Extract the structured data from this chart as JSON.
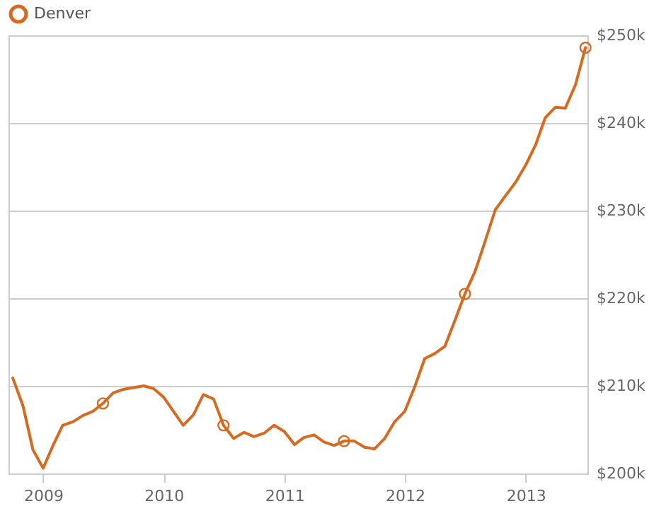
{
  "chart_data": {
    "type": "line",
    "x": [
      "2008-10",
      "2008-11",
      "2008-12",
      "2009-01",
      "2009-02",
      "2009-03",
      "2009-04",
      "2009-05",
      "2009-06",
      "2009-07",
      "2009-08",
      "2009-09",
      "2009-10",
      "2009-11",
      "2009-12",
      "2010-01",
      "2010-02",
      "2010-03",
      "2010-04",
      "2010-05",
      "2010-06",
      "2010-07",
      "2010-08",
      "2010-09",
      "2010-10",
      "2010-11",
      "2010-12",
      "2011-01",
      "2011-02",
      "2011-03",
      "2011-04",
      "2011-05",
      "2011-06",
      "2011-07",
      "2011-08",
      "2011-09",
      "2011-10",
      "2011-11",
      "2011-12",
      "2012-01",
      "2012-02",
      "2012-03",
      "2012-04",
      "2012-05",
      "2012-06",
      "2012-07",
      "2012-08",
      "2012-09",
      "2012-10",
      "2012-11",
      "2012-12",
      "2013-01",
      "2013-02",
      "2013-03",
      "2013-04",
      "2013-05",
      "2013-06",
      "2013-07"
    ],
    "series": [
      {
        "name": "Denver",
        "color": "#d9691f",
        "marker": "none",
        "values": [
          210900,
          207700,
          202700,
          200600,
          203300,
          205500,
          205900,
          206600,
          207100,
          208000,
          209200,
          209600,
          209800,
          210000,
          209700,
          208700,
          207000,
          205500,
          206700,
          209000,
          208500,
          205500,
          204000,
          204700,
          204200,
          204600,
          205500,
          204800,
          203300,
          204100,
          204400,
          203600,
          203200,
          203700,
          203700,
          203000,
          202800,
          204000,
          205900,
          207100,
          210000,
          213100,
          213700,
          214500,
          217500,
          220500,
          223100,
          226600,
          230100,
          231700,
          233200,
          235200,
          237600,
          240600,
          241800,
          241700,
          244400,
          248600
        ]
      },
      {
        "type": "scatter",
        "color": "#d9691f",
        "marker": "circle",
        "x": [
          "2009-07",
          "2010-07",
          "2011-07",
          "2012-07",
          "2013-07"
        ],
        "values": [
          208000,
          205500,
          203700,
          220500,
          248600
        ]
      }
    ],
    "xlim": [
      "2008-09-18",
      "2013-07-07"
    ],
    "xticks": [
      "2009",
      "2010",
      "2011",
      "2012",
      "2013"
    ],
    "ylim": [
      200000,
      250000
    ],
    "yticks": [
      {
        "value": 200000,
        "label": "$200k"
      },
      {
        "value": 210000,
        "label": "$210k"
      },
      {
        "value": 220000,
        "label": "$220k"
      },
      {
        "value": 230000,
        "label": "$230k"
      },
      {
        "value": 240000,
        "label": "$240k"
      },
      {
        "value": 250000,
        "label": "$250k"
      }
    ],
    "grid": "y",
    "legend": "top left"
  }
}
